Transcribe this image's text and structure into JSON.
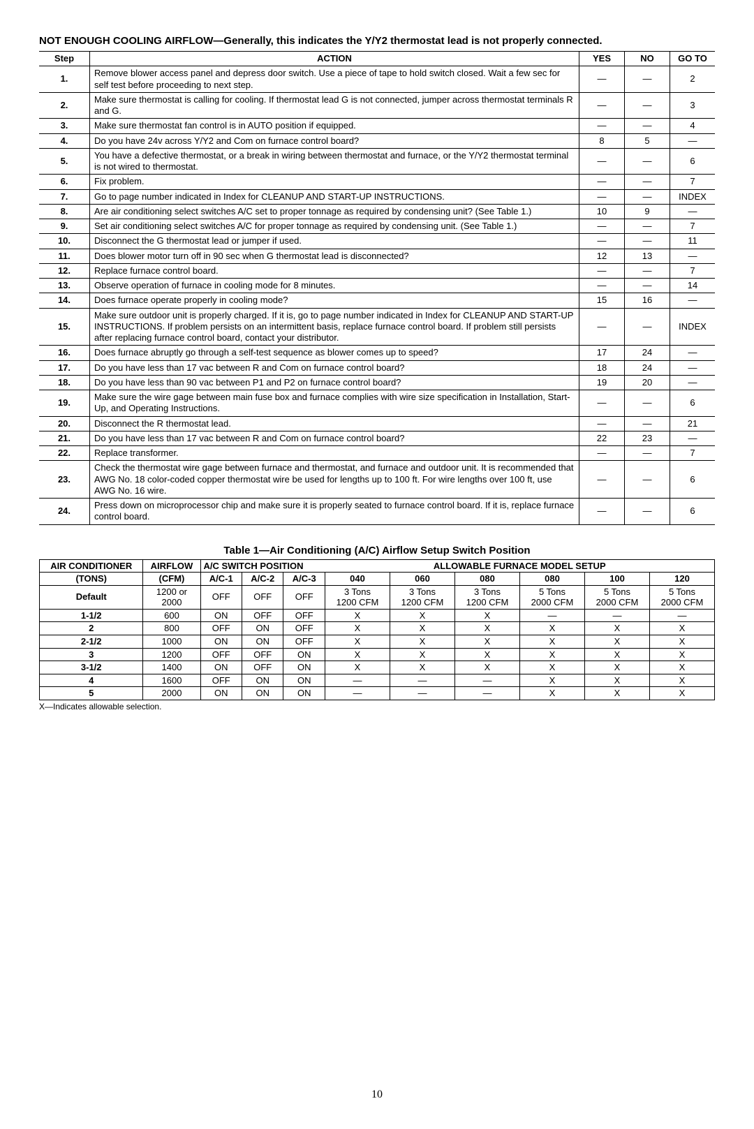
{
  "intro": "NOT ENOUGH COOLING AIRFLOW—Generally, this indicates the Y/Y2 thermostat lead is not properly connected.",
  "troubleshoot": {
    "headers": {
      "step": "Step",
      "action": "ACTION",
      "yes": "YES",
      "no": "NO",
      "goto": "GO TO"
    },
    "rows": [
      {
        "step": "1.",
        "action": "Remove blower access panel and depress door switch. Use a piece of tape to hold switch closed. Wait a few sec for self test before proceeding to next step.",
        "yes": "—",
        "no": "—",
        "goto": "2"
      },
      {
        "step": "2.",
        "action": "Make sure thermostat is calling for cooling. If thermostat lead G is not connected, jumper across thermostat terminals R and G.",
        "yes": "—",
        "no": "—",
        "goto": "3"
      },
      {
        "step": "3.",
        "action": "Make sure thermostat fan control is in AUTO position if equipped.",
        "yes": "—",
        "no": "—",
        "goto": "4"
      },
      {
        "step": "4.",
        "action": "Do you have 24v across Y/Y2 and Com on furnace control board?",
        "yes": "8",
        "no": "5",
        "goto": "—"
      },
      {
        "step": "5.",
        "action": "You have a defective thermostat, or a break in wiring between thermostat and furnace, or the Y/Y2 thermostat terminal is not wired to thermostat.",
        "yes": "—",
        "no": "—",
        "goto": "6"
      },
      {
        "step": "6.",
        "action": "Fix problem.",
        "yes": "—",
        "no": "—",
        "goto": "7"
      },
      {
        "step": "7.",
        "action": "Go to page number indicated in Index for CLEANUP AND START-UP INSTRUCTIONS.",
        "yes": "—",
        "no": "—",
        "goto": "INDEX"
      },
      {
        "step": "8.",
        "action": "Are air conditioning select switches A/C set to proper tonnage as required by condensing unit? (See Table 1.)",
        "yes": "10",
        "no": "9",
        "goto": "—"
      },
      {
        "step": "9.",
        "action": "Set air conditioning select switches A/C for proper tonnage as required by condensing unit. (See Table 1.)",
        "yes": "—",
        "no": "—",
        "goto": "7"
      },
      {
        "step": "10.",
        "action": "Disconnect the G thermostat lead or jumper if used.",
        "yes": "—",
        "no": "—",
        "goto": "11"
      },
      {
        "step": "11.",
        "action": "Does blower motor turn off in 90 sec when G thermostat lead is disconnected?",
        "yes": "12",
        "no": "13",
        "goto": "—"
      },
      {
        "step": "12.",
        "action": "Replace furnace control board.",
        "yes": "—",
        "no": "—",
        "goto": "7"
      },
      {
        "step": "13.",
        "action": "Observe operation of furnace in cooling mode for 8 minutes.",
        "yes": "—",
        "no": "—",
        "goto": "14"
      },
      {
        "step": "14.",
        "action": "Does furnace operate properly in cooling mode?",
        "yes": "15",
        "no": "16",
        "goto": "—"
      },
      {
        "step": "15.",
        "action": "Make sure outdoor unit is properly charged. If it is, go to page number indicated in Index for CLEANUP AND START-UP INSTRUCTIONS. If problem persists on an intermittent basis, replace furnace control board. If problem still persists after replacing furnace control board, contact your distributor.",
        "yes": "—",
        "no": "—",
        "goto": "INDEX"
      },
      {
        "step": "16.",
        "action": "Does furnace abruptly go through a self-test sequence as blower comes up to speed?",
        "yes": "17",
        "no": "24",
        "goto": "—"
      },
      {
        "step": "17.",
        "action": "Do you have less than 17 vac between R and Com on furnace control board?",
        "yes": "18",
        "no": "24",
        "goto": "—"
      },
      {
        "step": "18.",
        "action": "Do you have less than 90 vac between P1 and P2 on furnace control board?",
        "yes": "19",
        "no": "20",
        "goto": "—"
      },
      {
        "step": "19.",
        "action": "Make sure the wire gage between main fuse box and furnace complies with wire size specification in Installation, Start-Up, and Operating Instructions.",
        "yes": "—",
        "no": "—",
        "goto": "6"
      },
      {
        "step": "20.",
        "action": "Disconnect the R thermostat lead.",
        "yes": "—",
        "no": "—",
        "goto": "21"
      },
      {
        "step": "21.",
        "action": "Do you have less than 17 vac between R and Com on furnace control board?",
        "yes": "22",
        "no": "23",
        "goto": "—"
      },
      {
        "step": "22.",
        "action": "Replace transformer.",
        "yes": "—",
        "no": "—",
        "goto": "7"
      },
      {
        "step": "23.",
        "action": "Check the thermostat wire gage between furnace and thermostat, and furnace and outdoor unit. It is recommended that AWG No. 18 color-coded copper thermostat wire be used for lengths up to 100 ft. For wire lengths over 100 ft, use AWG No. 16 wire.",
        "yes": "—",
        "no": "—",
        "goto": "6"
      },
      {
        "step": "24.",
        "action": "Press down on microprocessor chip and make sure it is properly seated to furnace control board. If it is, replace furnace control board.",
        "yes": "—",
        "no": "—",
        "goto": "6"
      }
    ]
  },
  "table1": {
    "title": "Table 1—Air Conditioning (A/C) Airflow Setup Switch Position",
    "headers": {
      "ac_tons_l1": "AIR CONDITIONER",
      "ac_tons_l2": "(TONS)",
      "airflow_l1": "AIRFLOW",
      "airflow_l2": "(CFM)",
      "switch_pos": "A/C SWITCH POSITION",
      "model_setup": "ALLOWABLE FURNACE MODEL SETUP",
      "ac1": "A/C-1",
      "ac2": "A/C-2",
      "ac3": "A/C-3",
      "m040": "040",
      "m060": "060",
      "m080a": "080",
      "m080b": "080",
      "m100": "100",
      "m120": "120"
    },
    "rows": [
      {
        "tons": "Default",
        "cfm": "1200 or 2000",
        "ac1": "OFF",
        "ac2": "OFF",
        "ac3": "OFF",
        "m040": "3 Tons 1200 CFM",
        "m060": "3 Tons 1200 CFM",
        "m080a": "3 Tons 1200 CFM",
        "m080b": "5 Tons 2000 CFM",
        "m100": "5 Tons 2000 CFM",
        "m120": "5 Tons 2000 CFM"
      },
      {
        "tons": "1-1/2",
        "cfm": "600",
        "ac1": "ON",
        "ac2": "OFF",
        "ac3": "OFF",
        "m040": "X",
        "m060": "X",
        "m080a": "X",
        "m080b": "—",
        "m100": "—",
        "m120": "—"
      },
      {
        "tons": "2",
        "cfm": "800",
        "ac1": "OFF",
        "ac2": "ON",
        "ac3": "OFF",
        "m040": "X",
        "m060": "X",
        "m080a": "X",
        "m080b": "X",
        "m100": "X",
        "m120": "X"
      },
      {
        "tons": "2-1/2",
        "cfm": "1000",
        "ac1": "ON",
        "ac2": "ON",
        "ac3": "OFF",
        "m040": "X",
        "m060": "X",
        "m080a": "X",
        "m080b": "X",
        "m100": "X",
        "m120": "X"
      },
      {
        "tons": "3",
        "cfm": "1200",
        "ac1": "OFF",
        "ac2": "OFF",
        "ac3": "ON",
        "m040": "X",
        "m060": "X",
        "m080a": "X",
        "m080b": "X",
        "m100": "X",
        "m120": "X"
      },
      {
        "tons": "3-1/2",
        "cfm": "1400",
        "ac1": "ON",
        "ac2": "OFF",
        "ac3": "ON",
        "m040": "X",
        "m060": "X",
        "m080a": "X",
        "m080b": "X",
        "m100": "X",
        "m120": "X"
      },
      {
        "tons": "4",
        "cfm": "1600",
        "ac1": "OFF",
        "ac2": "ON",
        "ac3": "ON",
        "m040": "—",
        "m060": "—",
        "m080a": "—",
        "m080b": "X",
        "m100": "X",
        "m120": "X"
      },
      {
        "tons": "5",
        "cfm": "2000",
        "ac1": "ON",
        "ac2": "ON",
        "ac3": "ON",
        "m040": "—",
        "m060": "—",
        "m080a": "—",
        "m080b": "X",
        "m100": "X",
        "m120": "X"
      }
    ],
    "footnote": "X—Indicates allowable selection."
  },
  "page_number": "10"
}
